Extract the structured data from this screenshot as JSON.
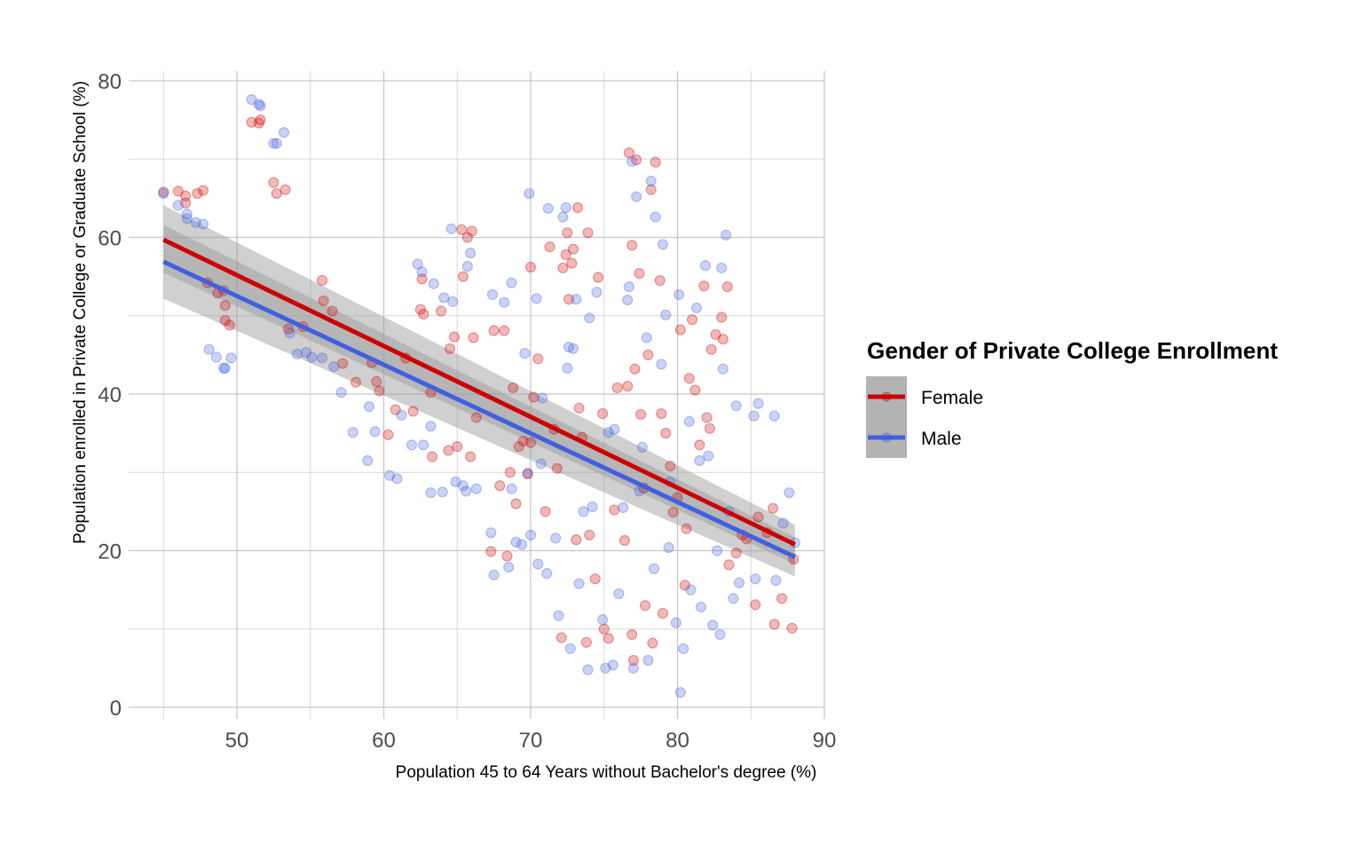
{
  "chart_data": {
    "type": "scatter",
    "title": "",
    "xlabel": "Population 45 to 64 Years without Bachelor's degree (%)",
    "ylabel": "Population enrolled in Private College or Graduate School (%)",
    "xlim": [
      42.7,
      90
    ],
    "ylim": [
      -1.5,
      81.5
    ],
    "xticks": [
      50,
      60,
      70,
      80,
      90
    ],
    "yticks": [
      0,
      20,
      40,
      60,
      80
    ],
    "xtick_labels": [
      "50",
      "60",
      "70",
      "80",
      "90"
    ],
    "ytick_labels": [
      "0",
      "20",
      "40",
      "60",
      "80"
    ],
    "grid": true,
    "legend": {
      "title": "Gender of Private College Enrollment",
      "placement": "right",
      "labels": [
        "Female",
        "Male"
      ]
    },
    "series": [
      {
        "name": "Female",
        "color": "#cc0000",
        "fit": {
          "x": [
            45,
            88
          ],
          "y": [
            59.7,
            20.8
          ],
          "ci_lower": [
            55.5,
            18.3
          ],
          "ci_upper": [
            64.1,
            23.3
          ]
        },
        "points": [
          [
            45,
            65.8
          ],
          [
            46,
            65.9
          ],
          [
            46.5,
            65.3
          ],
          [
            46.5,
            64.4
          ],
          [
            47.3,
            65.6
          ],
          [
            47.7,
            66
          ],
          [
            48,
            54.2
          ],
          [
            48.7,
            52.9
          ],
          [
            49.2,
            51.3
          ],
          [
            49.2,
            49.4
          ],
          [
            49.5,
            48.8
          ],
          [
            49.1,
            53.2
          ],
          [
            51,
            74.7
          ],
          [
            51.5,
            74.6
          ],
          [
            51.6,
            75
          ],
          [
            52.5,
            67
          ],
          [
            52.7,
            65.6
          ],
          [
            53.3,
            66.1
          ],
          [
            53.5,
            48.3
          ],
          [
            55.8,
            54.5
          ],
          [
            55.9,
            51.9
          ],
          [
            56.5,
            50.6
          ],
          [
            54.5,
            48.6
          ],
          [
            57.2,
            43.9
          ],
          [
            58.1,
            41.5
          ],
          [
            59.2,
            44
          ],
          [
            59.5,
            41.6
          ],
          [
            59.7,
            40.4
          ],
          [
            60.3,
            34.8
          ],
          [
            60.8,
            38
          ],
          [
            61.5,
            44.6
          ],
          [
            62,
            37.8
          ],
          [
            62.5,
            50.8
          ],
          [
            62.6,
            54.7
          ],
          [
            62.7,
            50.2
          ],
          [
            63.2,
            40.2
          ],
          [
            63.3,
            32
          ],
          [
            63.9,
            50.6
          ],
          [
            64.4,
            32.8
          ],
          [
            64.5,
            45.8
          ],
          [
            64.8,
            47.3
          ],
          [
            65,
            33.3
          ],
          [
            65.3,
            61
          ],
          [
            65.4,
            55
          ],
          [
            65.7,
            60
          ],
          [
            65.9,
            32
          ],
          [
            66,
            60.8
          ],
          [
            66.1,
            47.2
          ],
          [
            66.3,
            37
          ],
          [
            67.3,
            19.9
          ],
          [
            67.5,
            48.1
          ],
          [
            68.2,
            48.1
          ],
          [
            68.4,
            19.3
          ],
          [
            68.8,
            40.8
          ],
          [
            69,
            26
          ],
          [
            69.5,
            34
          ],
          [
            69.8,
            29.8
          ],
          [
            70,
            56.2
          ],
          [
            70.2,
            39.6
          ],
          [
            70.5,
            44.5
          ],
          [
            71,
            25
          ],
          [
            71.3,
            58.8
          ],
          [
            71.8,
            30.5
          ],
          [
            72.1,
            8.9
          ],
          [
            72.2,
            56.1
          ],
          [
            72.4,
            57.8
          ],
          [
            72.5,
            60.6
          ],
          [
            72.6,
            52.1
          ],
          [
            72.8,
            56.7
          ],
          [
            72.9,
            58.5
          ],
          [
            73.2,
            63.8
          ],
          [
            73.3,
            38.2
          ],
          [
            73.5,
            34.5
          ],
          [
            73.8,
            8.3
          ],
          [
            73.9,
            60.6
          ],
          [
            74,
            22
          ],
          [
            74.4,
            16.4
          ],
          [
            74.6,
            54.9
          ],
          [
            75,
            10
          ],
          [
            75.3,
            8.8
          ],
          [
            75.9,
            40.8
          ],
          [
            76.4,
            21.3
          ],
          [
            76.6,
            41
          ],
          [
            76.7,
            70.8
          ],
          [
            76.9,
            59
          ],
          [
            77,
            6
          ],
          [
            77.1,
            43.2
          ],
          [
            77.2,
            69.9
          ],
          [
            77.4,
            55.4
          ],
          [
            77.5,
            37.4
          ],
          [
            77.7,
            28
          ],
          [
            77.8,
            13
          ],
          [
            78,
            45
          ],
          [
            78.2,
            66.1
          ],
          [
            78.5,
            69.6
          ],
          [
            78.8,
            54.5
          ],
          [
            78.9,
            37.5
          ],
          [
            79,
            12
          ],
          [
            79.2,
            35
          ],
          [
            79.5,
            30.8
          ],
          [
            80,
            26.8
          ],
          [
            80.2,
            48.2
          ],
          [
            80.5,
            15.6
          ],
          [
            80.8,
            42
          ],
          [
            81,
            49.5
          ],
          [
            81.2,
            40.5
          ],
          [
            81.5,
            33.5
          ],
          [
            81.8,
            53.8
          ],
          [
            82,
            37
          ],
          [
            82.3,
            45.7
          ],
          [
            82.6,
            47.6
          ],
          [
            83,
            49.8
          ],
          [
            83.1,
            47
          ],
          [
            83.4,
            53.7
          ],
          [
            83.5,
            18.2
          ],
          [
            84,
            19.7
          ],
          [
            84.4,
            22
          ],
          [
            85.3,
            13.1
          ],
          [
            85.5,
            24.3
          ],
          [
            86.5,
            25.4
          ],
          [
            86.6,
            10.6
          ],
          [
            87.1,
            13.9
          ],
          [
            87.8,
            10.1
          ],
          [
            87.9,
            18.9
          ],
          [
            79.7,
            24.9
          ],
          [
            78.3,
            8.2
          ],
          [
            76.9,
            9.3
          ],
          [
            75.7,
            25.2
          ],
          [
            73.1,
            21.4
          ],
          [
            71.6,
            35.5
          ],
          [
            70,
            33.8
          ],
          [
            69.2,
            33.3
          ],
          [
            68.6,
            30
          ],
          [
            67.9,
            28.3
          ],
          [
            74.9,
            37.5
          ],
          [
            80.6,
            22.8
          ],
          [
            82.2,
            35.6
          ],
          [
            84.7,
            21.5
          ],
          [
            86.1,
            22.3
          ]
        ]
      },
      {
        "name": "Male",
        "color": "#4060e0",
        "fit": {
          "x": [
            45,
            88
          ],
          "y": [
            56.9,
            19.2
          ],
          "ci_lower": [
            52.2,
            16.7
          ],
          "ci_upper": [
            61.6,
            21.7
          ]
        },
        "points": [
          [
            45,
            65.6
          ],
          [
            46,
            64.1
          ],
          [
            46.6,
            63
          ],
          [
            46.6,
            62.4
          ],
          [
            47.2,
            61.9
          ],
          [
            47.7,
            61.7
          ],
          [
            48.1,
            45.7
          ],
          [
            48.6,
            44.7
          ],
          [
            49.1,
            43.3
          ],
          [
            49.2,
            43.3
          ],
          [
            49.6,
            44.6
          ],
          [
            51,
            77.6
          ],
          [
            51.5,
            77
          ],
          [
            51.6,
            76.8
          ],
          [
            52.5,
            72
          ],
          [
            52.7,
            72
          ],
          [
            53.2,
            73.4
          ],
          [
            53.6,
            47.8
          ],
          [
            54.1,
            45.1
          ],
          [
            54.7,
            45.3
          ],
          [
            55.1,
            44.7
          ],
          [
            55.8,
            44.6
          ],
          [
            56.6,
            43.5
          ],
          [
            57.1,
            40.2
          ],
          [
            57.9,
            35.1
          ],
          [
            58.9,
            31.5
          ],
          [
            59,
            38.4
          ],
          [
            59.4,
            35.2
          ],
          [
            60.4,
            29.6
          ],
          [
            60.9,
            29.2
          ],
          [
            61.2,
            37.3
          ],
          [
            61.9,
            33.5
          ],
          [
            62.3,
            56.6
          ],
          [
            62.6,
            55.6
          ],
          [
            62.7,
            33.5
          ],
          [
            63.2,
            27.4
          ],
          [
            63.2,
            35.9
          ],
          [
            63.4,
            54.1
          ],
          [
            64,
            27.5
          ],
          [
            64.1,
            52.3
          ],
          [
            64.6,
            61.1
          ],
          [
            64.7,
            51.8
          ],
          [
            64.9,
            28.8
          ],
          [
            65.4,
            28.3
          ],
          [
            65.6,
            27.6
          ],
          [
            65.7,
            56.3
          ],
          [
            65.9,
            58
          ],
          [
            66.3,
            27.9
          ],
          [
            67.3,
            22.3
          ],
          [
            67.4,
            52.7
          ],
          [
            67.5,
            16.9
          ],
          [
            68.2,
            51.7
          ],
          [
            68.5,
            17.9
          ],
          [
            68.7,
            54.2
          ],
          [
            69,
            21.1
          ],
          [
            69.6,
            45.2
          ],
          [
            69.8,
            29.9
          ],
          [
            69.9,
            65.6
          ],
          [
            70,
            22
          ],
          [
            70.4,
            52.2
          ],
          [
            70.5,
            18.3
          ],
          [
            70.7,
            31.1
          ],
          [
            71.1,
            17.1
          ],
          [
            71.2,
            63.7
          ],
          [
            71.7,
            21.6
          ],
          [
            71.9,
            11.7
          ],
          [
            72.2,
            62.6
          ],
          [
            72.4,
            63.8
          ],
          [
            72.5,
            43.3
          ],
          [
            72.6,
            46
          ],
          [
            72.7,
            7.5
          ],
          [
            72.9,
            45.8
          ],
          [
            73.1,
            52.1
          ],
          [
            73.3,
            15.8
          ],
          [
            73.6,
            25
          ],
          [
            73.9,
            4.8
          ],
          [
            74,
            49.7
          ],
          [
            74.5,
            53
          ],
          [
            74.9,
            11.2
          ],
          [
            75.1,
            5
          ],
          [
            75.6,
            5.4
          ],
          [
            75.7,
            35.5
          ],
          [
            76,
            14.5
          ],
          [
            76.6,
            52
          ],
          [
            76.7,
            53.7
          ],
          [
            76.9,
            69.7
          ],
          [
            77,
            5
          ],
          [
            77.2,
            65.2
          ],
          [
            77.4,
            27.6
          ],
          [
            77.6,
            33.2
          ],
          [
            77.9,
            47.2
          ],
          [
            78,
            6
          ],
          [
            78.2,
            67.2
          ],
          [
            78.5,
            62.6
          ],
          [
            79,
            59.1
          ],
          [
            79.2,
            50.1
          ],
          [
            79.4,
            20.4
          ],
          [
            79.9,
            10.8
          ],
          [
            80.2,
            1.9
          ],
          [
            80.4,
            7.5
          ],
          [
            80.8,
            36.5
          ],
          [
            80.9,
            15
          ],
          [
            81.3,
            51
          ],
          [
            81.6,
            12.8
          ],
          [
            81.9,
            56.4
          ],
          [
            82.1,
            32.1
          ],
          [
            82.4,
            10.5
          ],
          [
            82.9,
            9.3
          ],
          [
            83,
            56.1
          ],
          [
            83.1,
            43.2
          ],
          [
            83.3,
            60.3
          ],
          [
            83.5,
            25
          ],
          [
            83.8,
            13.9
          ],
          [
            84,
            38.5
          ],
          [
            84.2,
            15.9
          ],
          [
            85.2,
            37.2
          ],
          [
            85.3,
            16.4
          ],
          [
            85.5,
            38.8
          ],
          [
            86.6,
            37.2
          ],
          [
            86.7,
            16.2
          ],
          [
            87.2,
            23.5
          ],
          [
            87.6,
            27.4
          ],
          [
            88,
            21
          ],
          [
            79.5,
            28.8
          ],
          [
            78.9,
            43.8
          ],
          [
            78.4,
            17.7
          ],
          [
            81.5,
            31.5
          ],
          [
            82.7,
            20
          ],
          [
            76.3,
            25.5
          ],
          [
            75.3,
            35.1
          ],
          [
            74.2,
            25.6
          ],
          [
            70.8,
            39.5
          ],
          [
            68.7,
            27.9
          ],
          [
            69.4,
            20.8
          ],
          [
            80.1,
            52.7
          ]
        ]
      }
    ]
  }
}
